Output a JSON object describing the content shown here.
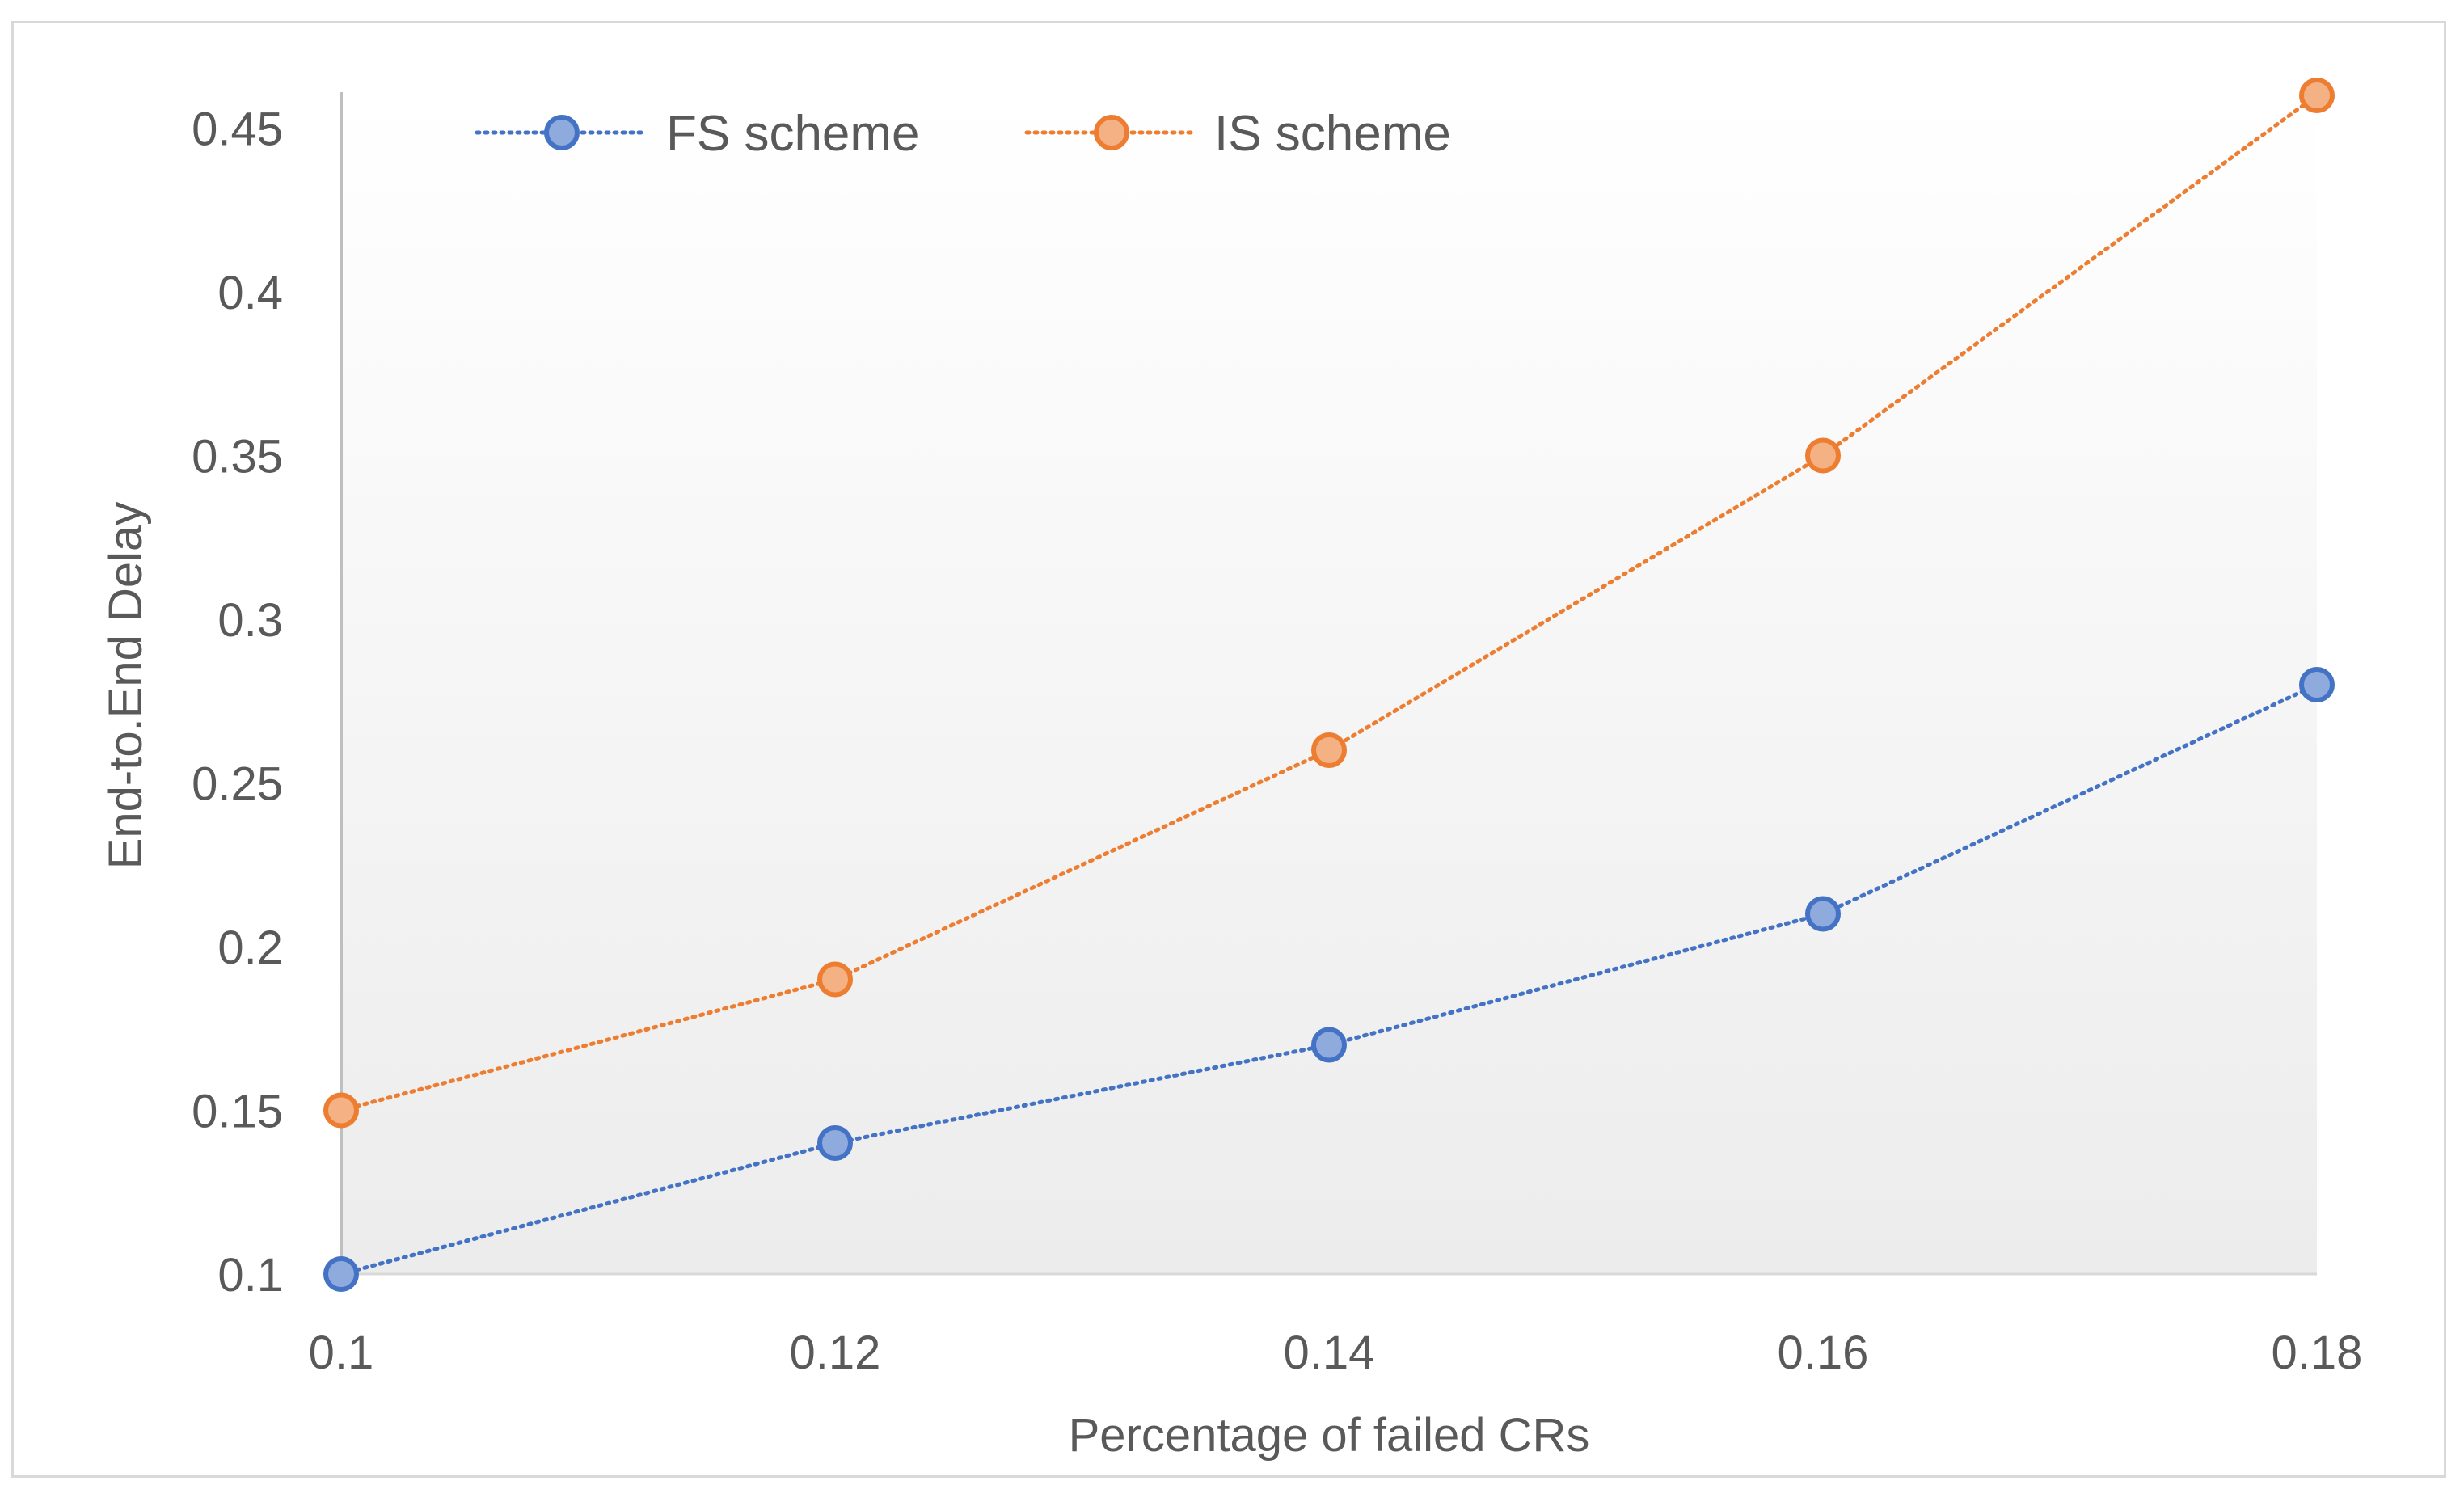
{
  "chart_data": {
    "type": "line",
    "title": "",
    "xlabel": "Percentage of failed CRs",
    "ylabel": "End-to.End Delay",
    "x": [
      0.1,
      0.12,
      0.14,
      0.16,
      0.18
    ],
    "x_tick_labels": [
      "0.1",
      "0.12",
      "0.14",
      "0.16",
      "0.18"
    ],
    "y_tick_values": [
      0.1,
      0.15,
      0.2,
      0.25,
      0.3,
      0.35,
      0.4,
      0.45
    ],
    "y_tick_labels": [
      "0.1",
      "0.15",
      "0.2",
      "0.25",
      "0.3",
      "0.35",
      "0.4",
      "0.45"
    ],
    "xlim": [
      0.1,
      0.18
    ],
    "ylim": [
      0.1,
      0.46
    ],
    "grid": false,
    "legend_position": "top",
    "series": [
      {
        "name": "FS scheme",
        "values": [
          0.1,
          0.14,
          0.17,
          0.21,
          0.28
        ],
        "line_color": "#4472c4",
        "marker_fill": "#8faadc",
        "marker_edge": "#4472c4",
        "line_style": "dotted"
      },
      {
        "name": "IS scheme",
        "values": [
          0.15,
          0.19,
          0.26,
          0.35,
          0.46
        ],
        "line_color": "#ed7d31",
        "marker_fill": "#f4b183",
        "marker_edge": "#ed7d31",
        "line_style": "dotted"
      }
    ]
  }
}
